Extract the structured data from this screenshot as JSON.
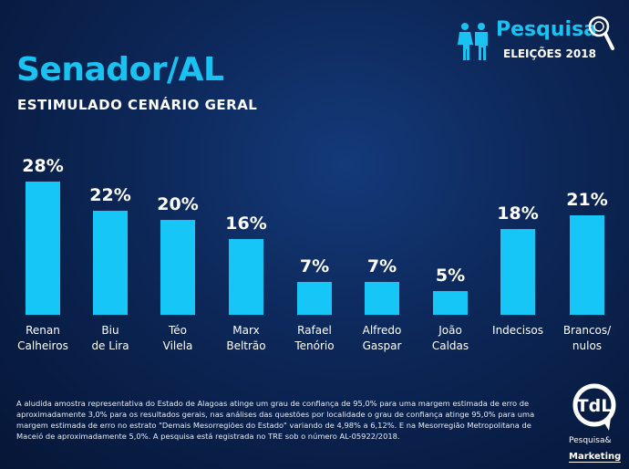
{
  "header": {
    "title": "Senador/AL",
    "subtitle": "ESTIMULADO CENÁRIO GERAL"
  },
  "brand": {
    "name": "Pesquisa",
    "sub": "ELEIÇÕES 2018"
  },
  "logo": {
    "text": "TdL",
    "sub1": "Pesquisa&",
    "sub2": "Marketing"
  },
  "chart_data": {
    "type": "bar",
    "title": "Senador/AL",
    "subtitle": "ESTIMULADO CENÁRIO GERAL",
    "categories": [
      [
        "Renan",
        "Calheiros"
      ],
      [
        "Biu",
        "de Lira"
      ],
      [
        "Téo",
        "Vilela"
      ],
      [
        "Marx",
        "Beltrão"
      ],
      [
        "Rafael",
        "Tenório"
      ],
      [
        "Alfredo",
        "Gaspar"
      ],
      [
        "João",
        "Caldas"
      ],
      [
        "Indecisos",
        ""
      ],
      [
        "Brancos/",
        "nulos"
      ]
    ],
    "values": [
      28,
      22,
      20,
      16,
      7,
      7,
      5,
      18,
      21
    ],
    "unit": "%",
    "ylim": [
      0,
      30
    ],
    "bar_color": "#15c6f7"
  },
  "footnote": "A aludida  amostra representativa do Estado de Alagoas  atinge um grau de confiança de 95,0% para uma margem estimada de erro de aproximadamente 3,0% para os resultados gerais, nas análises das questões por localidade o grau de confiança atinge 95,0% para uma margem estimada de erro no estrato \"Demais Mesorregiões do Estado\" variando de  4,98%  a 6,12%. E  na Mesorregião Metropolitana de Maceió  de aproximadamente 5,0%. A pesquisa está registrada no TRE sob o número AL-05922/2018."
}
